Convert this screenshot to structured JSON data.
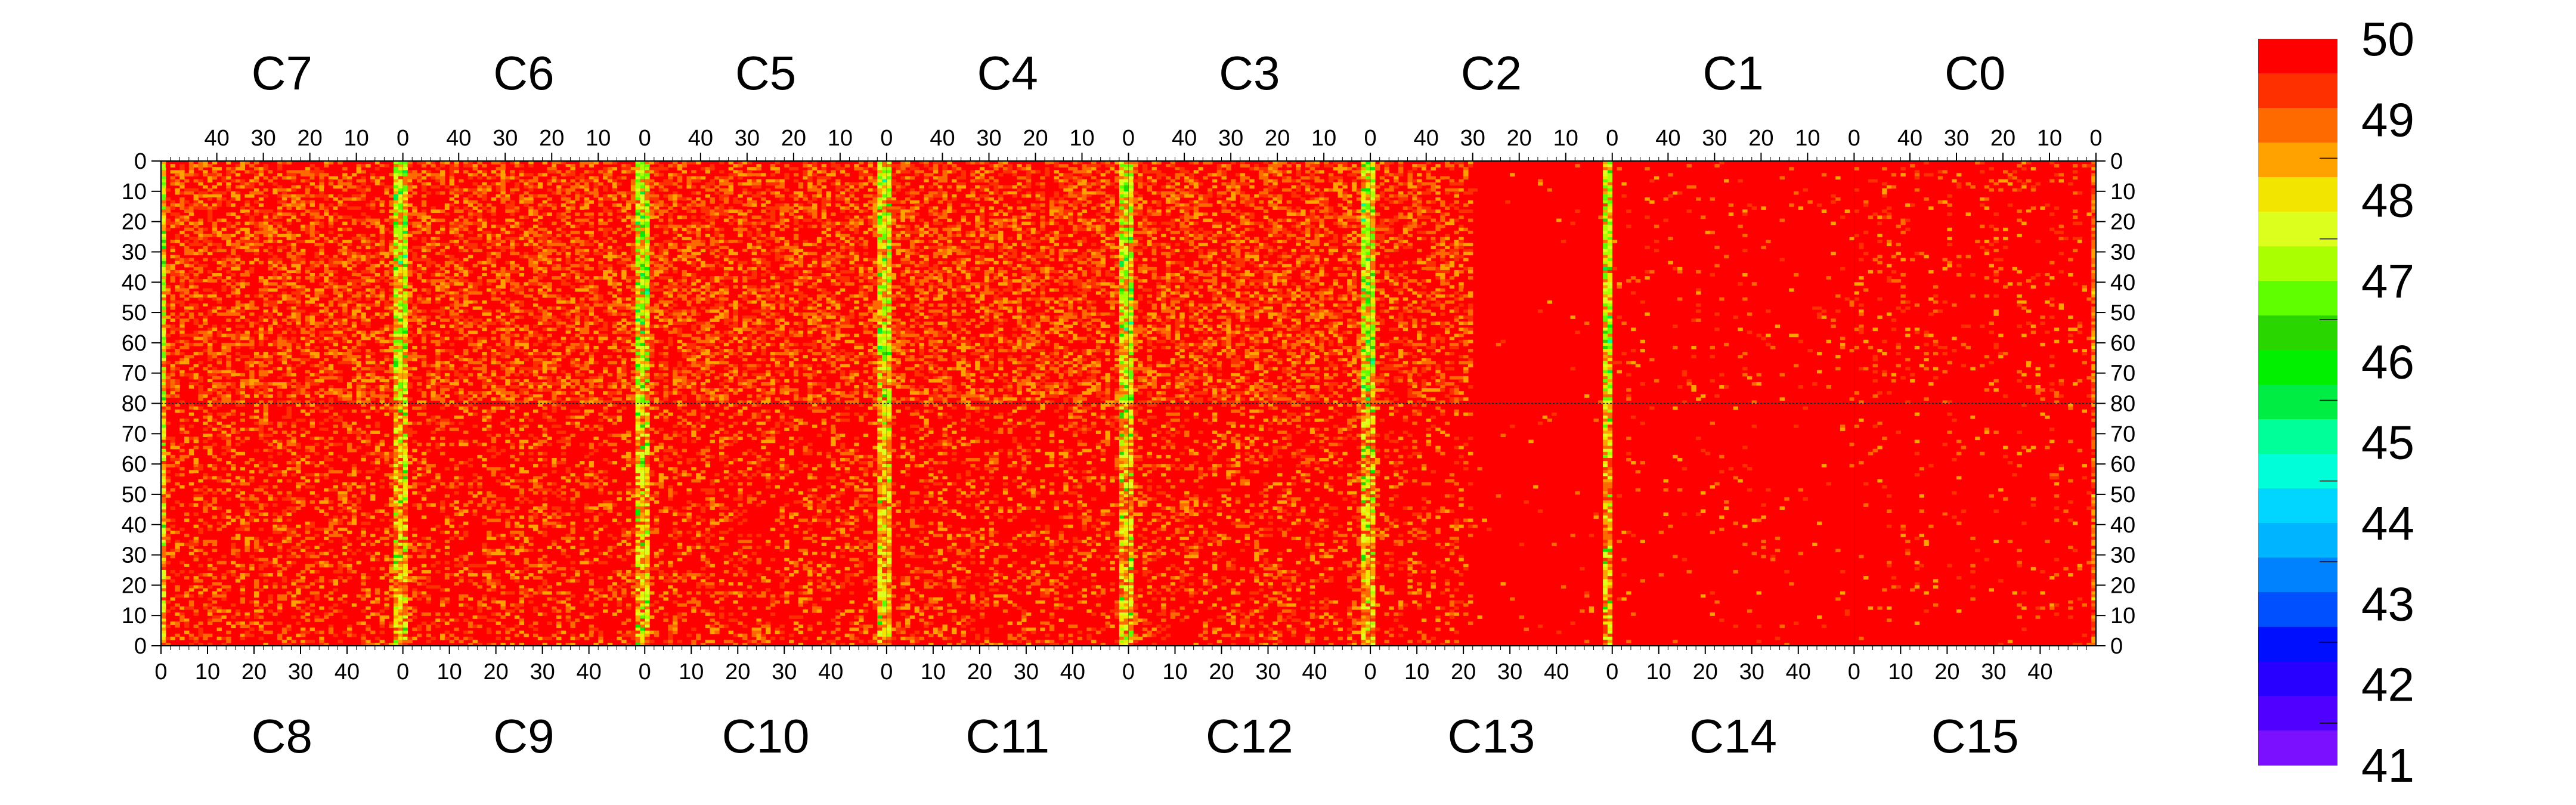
{
  "chart_data": {
    "type": "heatmap",
    "title": "",
    "top_chip_labels": [
      "C7",
      "C6",
      "C5",
      "C4",
      "C3",
      "C2",
      "C1",
      "C0"
    ],
    "bottom_chip_labels": [
      "C8",
      "C9",
      "C10",
      "C11",
      "C12",
      "C13",
      "C14",
      "C15"
    ],
    "x_ticks_top": [
      "40",
      "30",
      "20",
      "10",
      "0"
    ],
    "x_ticks_bottom": [
      "0",
      "10",
      "20",
      "30",
      "40"
    ],
    "y_ticks_left": [
      "0",
      "10",
      "20",
      "30",
      "40",
      "50",
      "60",
      "70",
      "80",
      "70",
      "60",
      "50",
      "40",
      "30",
      "20",
      "10",
      "0"
    ],
    "y_ticks_right": [
      "0",
      "10",
      "20",
      "30",
      "40",
      "50",
      "60",
      "70",
      "80",
      "70",
      "60",
      "50",
      "40",
      "30",
      "20",
      "10",
      "0"
    ],
    "columns_per_chip": 52,
    "rows_per_half": 80,
    "z_range": [
      41,
      50
    ],
    "colorbar": {
      "labels": [
        "50",
        "49",
        "48",
        "47",
        "46",
        "45",
        "44",
        "43",
        "42",
        "41"
      ],
      "colors": [
        "#ff0000",
        "#ff3000",
        "#ff6a00",
        "#ffa200",
        "#f2e600",
        "#dcff1e",
        "#aaff00",
        "#60ff00",
        "#2ad600",
        "#00f000",
        "#00ee44",
        "#00ff99",
        "#00ffd8",
        "#00d6ff",
        "#00b4ff",
        "#0082ff",
        "#0050ff",
        "#0010ff",
        "#2800ff",
        "#5000ff",
        "#7a10ff"
      ]
    },
    "grid": false
  }
}
